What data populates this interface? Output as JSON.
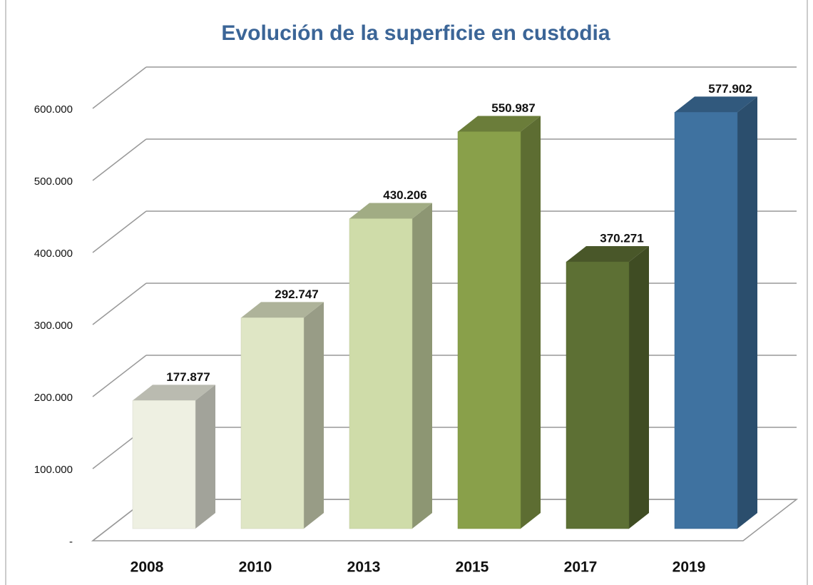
{
  "chart_data": {
    "type": "bar3d",
    "title": "Evolución de la superficie en custodia",
    "categories": [
      "2008",
      "2010",
      "2013",
      "2015",
      "2017",
      "2019"
    ],
    "values": [
      177877,
      292747,
      430206,
      550987,
      370271,
      577902
    ],
    "value_labels": [
      "177.877",
      "292.747",
      "430.206",
      "550.987",
      "370.271",
      "577.902"
    ],
    "colors": [
      "#eef0e2",
      "#dfe6c5",
      "#cfdca9",
      "#89a04a",
      "#5d7034",
      "#3f72a0"
    ],
    "ylim": [
      0,
      600000
    ],
    "yticks": [
      {
        "value": 0,
        "label": "-"
      },
      {
        "value": 100000,
        "label": "100.000"
      },
      {
        "value": 200000,
        "label": "200.000"
      },
      {
        "value": 300000,
        "label": "300.000"
      },
      {
        "value": 400000,
        "label": "400.000"
      },
      {
        "value": 500000,
        "label": "500.000"
      },
      {
        "value": 600000,
        "label": "600.000"
      }
    ],
    "grid": true
  }
}
